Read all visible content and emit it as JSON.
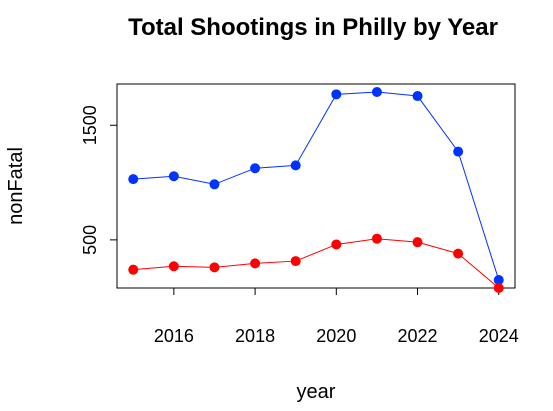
{
  "chart_data": {
    "type": "line",
    "title": "Total Shootings in Philly by Year",
    "xlabel": "year",
    "ylabel": "nonFatal",
    "x": [
      2015,
      2016,
      2017,
      2018,
      2019,
      2020,
      2021,
      2022,
      2023,
      2024
    ],
    "xticks": [
      2016,
      2018,
      2020,
      2022,
      2024
    ],
    "yticks": [
      500,
      1500
    ],
    "xlim": [
      2014.6,
      2024.4
    ],
    "ylim": [
      80,
      1860
    ],
    "grid": false,
    "legend": "none",
    "series": [
      {
        "color": "#0033ff",
        "values": [
          1030,
          1055,
          985,
          1125,
          1150,
          1770,
          1790,
          1755,
          1270,
          150
        ]
      },
      {
        "color": "#ff0000",
        "values": [
          240,
          270,
          260,
          295,
          315,
          460,
          510,
          480,
          380,
          80
        ]
      }
    ]
  }
}
